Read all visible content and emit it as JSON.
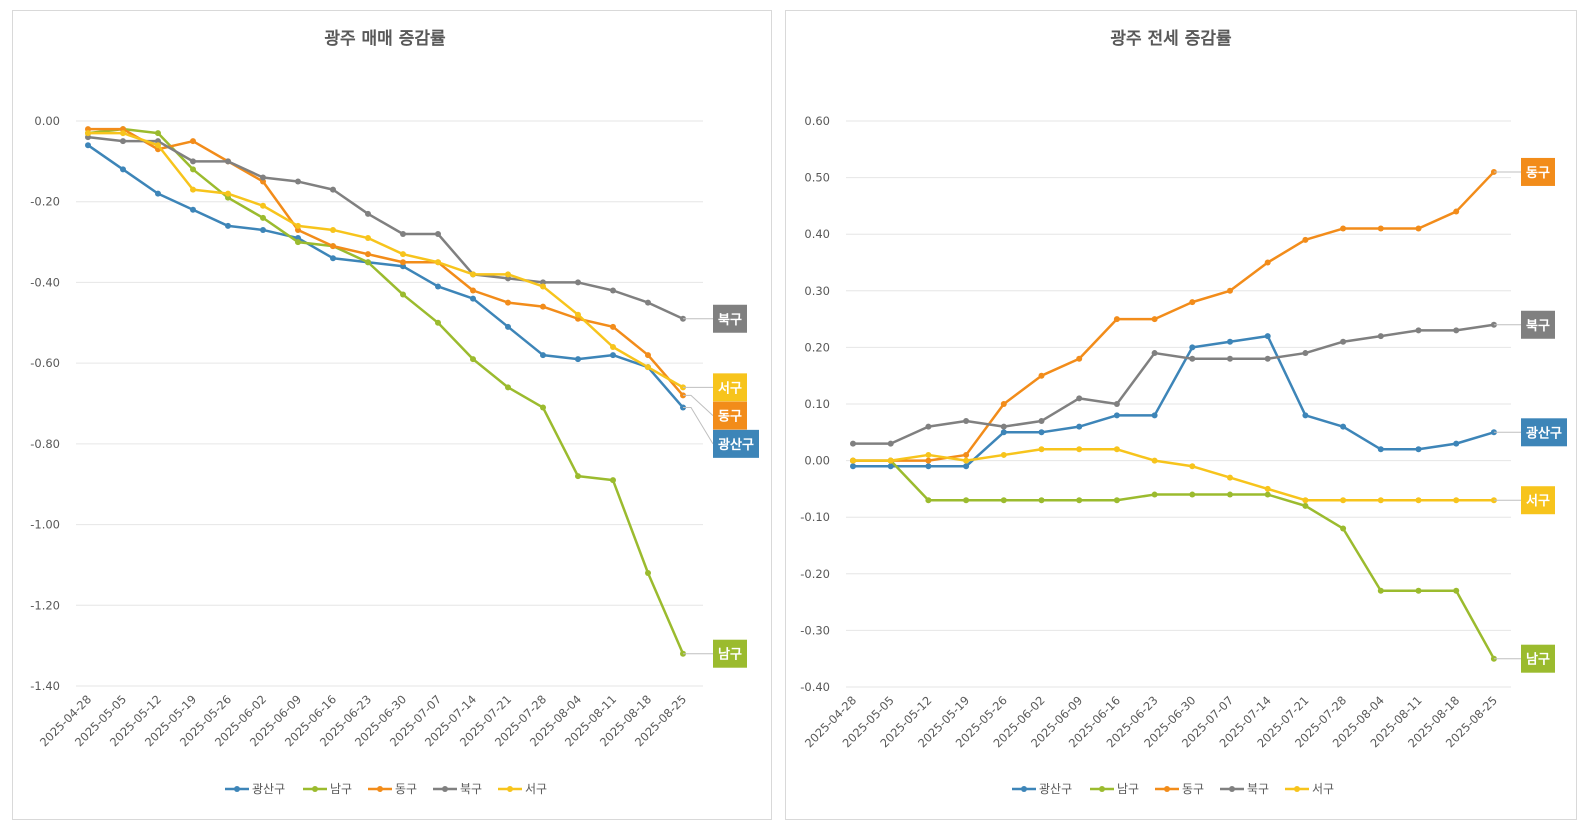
{
  "colors": {
    "광산구": "#3d85b8",
    "남구": "#9bbb2e",
    "동구": "#f28c1a",
    "북구": "#808080",
    "서구": "#f7c41c"
  },
  "chart_data": [
    {
      "type": "line",
      "title": "광주 매매 증감률",
      "x": [
        "2025-04-28",
        "2025-05-05",
        "2025-05-12",
        "2025-05-19",
        "2025-05-26",
        "2025-06-02",
        "2025-06-09",
        "2025-06-16",
        "2025-06-23",
        "2025-06-30",
        "2025-07-07",
        "2025-07-14",
        "2025-07-21",
        "2025-07-28",
        "2025-08-04",
        "2025-08-11",
        "2025-08-18",
        "2025-08-25"
      ],
      "ylim": [
        -1.4,
        0.0
      ],
      "yticks": [
        0.0,
        -0.2,
        -0.4,
        -0.6,
        -0.8,
        -1.0,
        -1.2,
        -1.4
      ],
      "yticklabels": [
        "0.00",
        "-0.20",
        "-0.40",
        "-0.60",
        "-0.80",
        "-1.00",
        "-1.20",
        "-1.40"
      ],
      "legend": "bottom",
      "grid": true,
      "series": [
        {
          "name": "광산구",
          "values": [
            -0.06,
            -0.12,
            -0.18,
            -0.22,
            -0.26,
            -0.27,
            -0.29,
            -0.34,
            -0.35,
            -0.36,
            -0.41,
            -0.44,
            -0.51,
            -0.58,
            -0.59,
            -0.58,
            -0.61,
            -0.71
          ]
        },
        {
          "name": "남구",
          "values": [
            -0.03,
            -0.02,
            -0.03,
            -0.12,
            -0.19,
            -0.24,
            -0.3,
            -0.31,
            -0.35,
            -0.43,
            -0.5,
            -0.59,
            -0.66,
            -0.71,
            -0.88,
            -0.89,
            -1.12,
            -1.32
          ]
        },
        {
          "name": "동구",
          "values": [
            -0.02,
            -0.02,
            -0.07,
            -0.05,
            -0.1,
            -0.15,
            -0.27,
            -0.31,
            -0.33,
            -0.35,
            -0.35,
            -0.42,
            -0.45,
            -0.46,
            -0.49,
            -0.51,
            -0.58,
            -0.68
          ]
        },
        {
          "name": "북구",
          "values": [
            -0.04,
            -0.05,
            -0.05,
            -0.1,
            -0.1,
            -0.14,
            -0.15,
            -0.17,
            -0.23,
            -0.28,
            -0.28,
            -0.38,
            -0.39,
            -0.4,
            -0.4,
            -0.42,
            -0.45,
            -0.49
          ]
        },
        {
          "name": "서구",
          "values": [
            -0.03,
            -0.03,
            -0.06,
            -0.17,
            -0.18,
            -0.21,
            -0.26,
            -0.27,
            -0.29,
            -0.33,
            -0.35,
            -0.38,
            -0.38,
            -0.41,
            -0.48,
            -0.56,
            -0.61,
            -0.66
          ]
        }
      ],
      "end_labels": [
        {
          "series": "북구",
          "text": "북구",
          "y": -0.49
        },
        {
          "series": "서구",
          "text": "서구",
          "y": -0.66
        },
        {
          "series": "동구",
          "text": "동구",
          "y": -0.73
        },
        {
          "series": "광산구",
          "text": "광산구",
          "y": -0.8
        },
        {
          "series": "남구",
          "text": "남구",
          "y": -1.32
        }
      ]
    },
    {
      "type": "line",
      "title": "광주 전세 증감률",
      "x": [
        "2025-04-28",
        "2025-05-05",
        "2025-05-12",
        "2025-05-19",
        "2025-05-26",
        "2025-06-02",
        "2025-06-09",
        "2025-06-16",
        "2025-06-23",
        "2025-06-30",
        "2025-07-07",
        "2025-07-14",
        "2025-07-21",
        "2025-07-28",
        "2025-08-04",
        "2025-08-11",
        "2025-08-18",
        "2025-08-25"
      ],
      "ylim": [
        -0.4,
        0.6
      ],
      "yticks": [
        0.6,
        0.5,
        0.4,
        0.3,
        0.2,
        0.1,
        0.0,
        -0.1,
        -0.2,
        -0.3,
        -0.4
      ],
      "yticklabels": [
        "0.60",
        "0.50",
        "0.40",
        "0.30",
        "0.20",
        "0.10",
        "0.00",
        "-0.10",
        "-0.20",
        "-0.30",
        "-0.40"
      ],
      "legend": "bottom",
      "grid": true,
      "series": [
        {
          "name": "광산구",
          "values": [
            -0.01,
            -0.01,
            -0.01,
            -0.01,
            0.05,
            0.05,
            0.06,
            0.08,
            0.08,
            0.2,
            0.21,
            0.22,
            0.08,
            0.06,
            0.02,
            0.02,
            0.03,
            0.05
          ]
        },
        {
          "name": "남구",
          "values": [
            0.0,
            0.0,
            -0.07,
            -0.07,
            -0.07,
            -0.07,
            -0.07,
            -0.07,
            -0.06,
            -0.06,
            -0.06,
            -0.06,
            -0.08,
            -0.12,
            -0.23,
            -0.23,
            -0.23,
            -0.35
          ]
        },
        {
          "name": "동구",
          "values": [
            0.0,
            0.0,
            0.0,
            0.01,
            0.1,
            0.15,
            0.18,
            0.25,
            0.25,
            0.28,
            0.3,
            0.35,
            0.39,
            0.41,
            0.41,
            0.41,
            0.44,
            0.51
          ]
        },
        {
          "name": "북구",
          "values": [
            0.03,
            0.03,
            0.06,
            0.07,
            0.06,
            0.07,
            0.11,
            0.1,
            0.19,
            0.18,
            0.18,
            0.18,
            0.19,
            0.21,
            0.22,
            0.23,
            0.23,
            0.24
          ]
        },
        {
          "name": "서구",
          "values": [
            0.0,
            0.0,
            0.01,
            0.0,
            0.01,
            0.02,
            0.02,
            0.02,
            0.0,
            -0.01,
            -0.03,
            -0.05,
            -0.07,
            -0.07,
            -0.07,
            -0.07,
            -0.07,
            -0.07
          ]
        }
      ],
      "end_labels": [
        {
          "series": "동구",
          "text": "동구",
          "y": 0.51
        },
        {
          "series": "북구",
          "text": "북구",
          "y": 0.24
        },
        {
          "series": "광산구",
          "text": "광산구",
          "y": 0.05
        },
        {
          "series": "서구",
          "text": "서구",
          "y": -0.07
        },
        {
          "series": "남구",
          "text": "남구",
          "y": -0.35
        }
      ]
    }
  ]
}
